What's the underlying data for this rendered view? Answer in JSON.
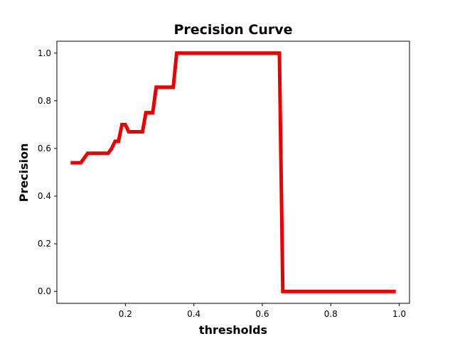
{
  "chart_data": {
    "type": "line",
    "title": "Precision Curve",
    "xlabel": "thresholds",
    "ylabel": "Precision",
    "xlim": [
      0.0,
      1.03
    ],
    "ylim": [
      -0.05,
      1.05
    ],
    "xticks": [
      0.2,
      0.4,
      0.6,
      0.8,
      1.0
    ],
    "xtick_labels": [
      "0.2",
      "0.4",
      "0.6",
      "0.8",
      "1.0"
    ],
    "yticks": [
      0.0,
      0.2,
      0.4,
      0.6,
      0.8,
      1.0
    ],
    "ytick_labels": [
      "0.0",
      "0.2",
      "0.4",
      "0.6",
      "0.8",
      "1.0"
    ],
    "grid": false,
    "series": [
      {
        "color": "#ee0000",
        "x": [
          0.04,
          0.07,
          0.08,
          0.09,
          0.15,
          0.16,
          0.17,
          0.18,
          0.19,
          0.2,
          0.21,
          0.25,
          0.26,
          0.27,
          0.28,
          0.29,
          0.34,
          0.35,
          0.65,
          0.66,
          0.99
        ],
        "y": [
          0.54,
          0.54,
          0.56,
          0.58,
          0.58,
          0.6,
          0.63,
          0.63,
          0.7,
          0.7,
          0.67,
          0.67,
          0.75,
          0.75,
          0.75,
          0.857,
          0.857,
          1.0,
          1.0,
          0.0,
          0.0
        ]
      }
    ]
  }
}
